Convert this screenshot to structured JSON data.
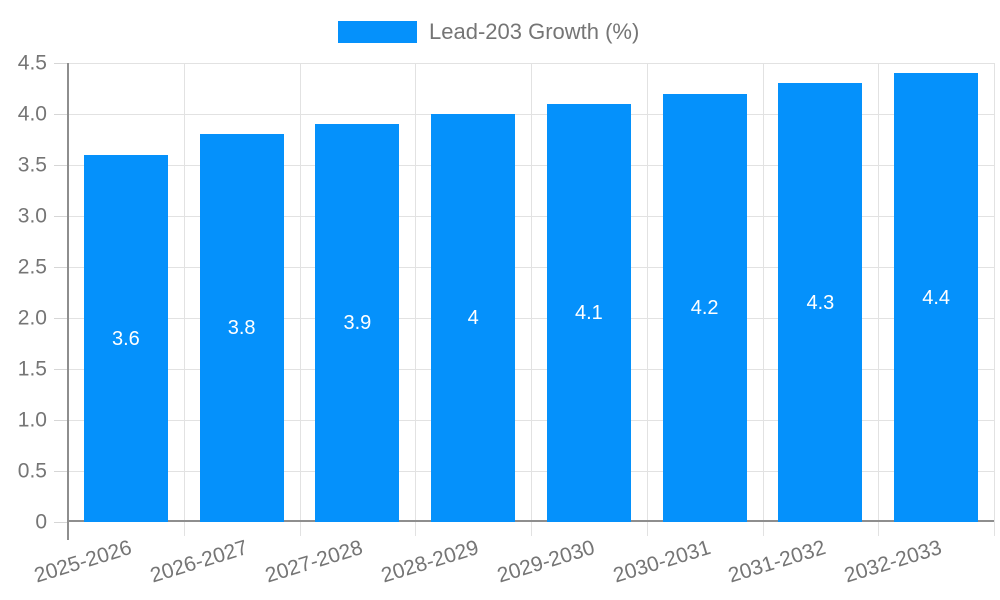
{
  "legend": {
    "label": "Lead-203 Growth (%)",
    "position": "top"
  },
  "colors": {
    "bar": "#0591FB",
    "grid": "#E2E2E2",
    "axis": "#8E8E8E",
    "tick": "#D6D6D6",
    "axis_label": "#757575",
    "legend_label": "#757575",
    "bar_value": "#FFFFFF",
    "background": "#FFFFFF"
  },
  "chart_data": {
    "type": "bar",
    "title": "Lead-203 Growth (%)",
    "series_name": "Lead-203 Growth (%)",
    "categories": [
      "2025-2026",
      "2026-2027",
      "2027-2028",
      "2028-2029",
      "2029-2030",
      "2030-2031",
      "2031-2032",
      "2032-2033"
    ],
    "values": [
      3.6,
      3.8,
      3.9,
      4,
      4.1,
      4.2,
      4.3,
      4.4
    ],
    "value_labels": [
      "3.6",
      "3.8",
      "3.9",
      "4",
      "4.1",
      "4.2",
      "4.3",
      "4.4"
    ],
    "xlabel": "",
    "ylabel": "",
    "ylim": [
      0,
      4.5
    ],
    "ytick_step": 0.5,
    "ytick_labels": [
      "0",
      "0.5",
      "1.0",
      "1.5",
      "2.0",
      "2.5",
      "3.0",
      "3.5",
      "4.0",
      "4.5"
    ],
    "grid": true,
    "legend_position": "top",
    "x_label_rotation_deg": -17
  }
}
